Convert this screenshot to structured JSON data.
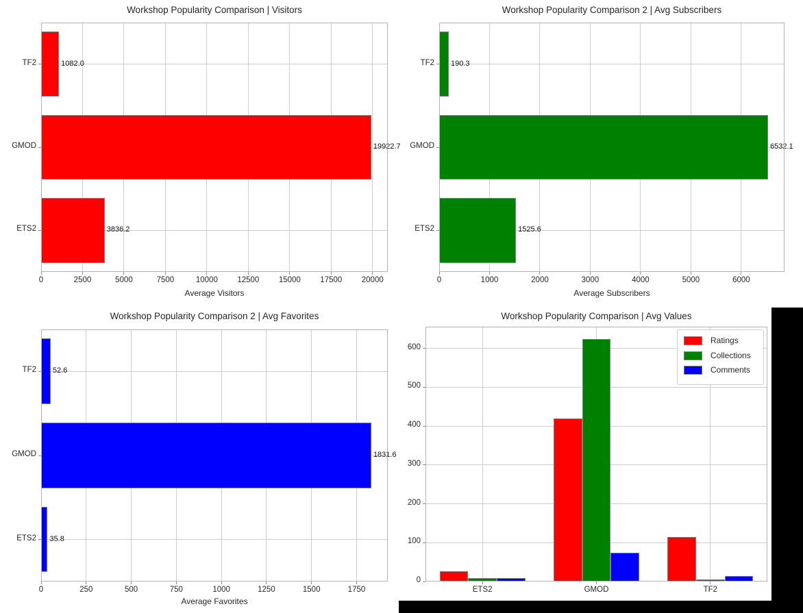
{
  "page": {
    "figure_background": "#ffffff",
    "canvas_background": "#000000"
  },
  "colors": {
    "red": "#ff0000",
    "green": "#008000",
    "blue": "#0000ff",
    "bar_edge": "#808080",
    "grid": "#cccccc",
    "spine": "#b3b3b3",
    "tick": "#8a8a8a",
    "text": "#262626",
    "value_label": "#111111",
    "legend_border": "#cccccc"
  },
  "chart_data": [
    {
      "id": "visitors",
      "type": "bar",
      "orientation": "horizontal",
      "title": "Workshop Popularity Comparison | Visitors",
      "xlabel": "Average Visitors",
      "categories": [
        "TF2",
        "GMOD",
        "ETS2"
      ],
      "values": [
        1082.0,
        19922.7,
        3836.2
      ],
      "value_labels": [
        "1082.0",
        "19922.7",
        "3836.2"
      ],
      "bar_color": "#ff0000",
      "xticks": [
        0,
        2500,
        5000,
        7500,
        10000,
        12500,
        15000,
        17500,
        20000
      ],
      "xtick_labels": [
        "0",
        "2500",
        "5000",
        "7500",
        "10000",
        "12500",
        "15000",
        "17500",
        "20000"
      ],
      "xlim": [
        0,
        20919
      ],
      "grid": true
    },
    {
      "id": "subscribers",
      "type": "bar",
      "orientation": "horizontal",
      "title": "Workshop Popularity Comparison 2 | Avg Subscribers",
      "xlabel": "Average Subscribers",
      "categories": [
        "TF2",
        "GMOD",
        "ETS2"
      ],
      "values": [
        190.3,
        6532.1,
        1525.6
      ],
      "value_labels": [
        "190.3",
        "6532.1",
        "1525.6"
      ],
      "bar_color": "#008000",
      "xticks": [
        0,
        1000,
        2000,
        3000,
        4000,
        5000,
        6000
      ],
      "xtick_labels": [
        "0",
        "1000",
        "2000",
        "3000",
        "4000",
        "5000",
        "6000"
      ],
      "xlim": [
        0,
        6859
      ],
      "grid": true
    },
    {
      "id": "favorites",
      "type": "bar",
      "orientation": "horizontal",
      "title": "Workshop Popularity Comparison 2 | Avg Favorites",
      "xlabel": "Average Favorites",
      "categories": [
        "TF2",
        "GMOD",
        "ETS2"
      ],
      "values": [
        52.6,
        1831.6,
        35.8
      ],
      "value_labels": [
        "52.6",
        "1831.6",
        "35.8"
      ],
      "bar_color": "#0000ff",
      "xticks": [
        0,
        250,
        500,
        750,
        1000,
        1250,
        1500,
        1750
      ],
      "xtick_labels": [
        "0",
        "250",
        "500",
        "750",
        "1000",
        "1250",
        "1500",
        "1750"
      ],
      "xlim": [
        0,
        1923
      ],
      "grid": true
    },
    {
      "id": "avg-values",
      "type": "bar",
      "orientation": "vertical",
      "title": "Workshop Popularity Comparison | Avg Values",
      "xlabel": "",
      "categories": [
        "ETS2",
        "GMOD",
        "TF2"
      ],
      "series": [
        {
          "name": "Ratings",
          "color": "#ff0000",
          "values": [
            27,
            420,
            115
          ]
        },
        {
          "name": "Collections",
          "color": "#008000",
          "values": [
            8,
            625,
            6
          ]
        },
        {
          "name": "Comments",
          "color": "#0000ff",
          "values": [
            9,
            74,
            14
          ]
        }
      ],
      "yticks": [
        0,
        100,
        200,
        300,
        400,
        500,
        600
      ],
      "ytick_labels": [
        "0",
        "100",
        "200",
        "300",
        "400",
        "500",
        "600"
      ],
      "ylim": [
        0,
        656
      ],
      "grid": true,
      "legend": {
        "entries": [
          "Ratings",
          "Collections",
          "Comments"
        ],
        "position": "upper right"
      }
    }
  ]
}
